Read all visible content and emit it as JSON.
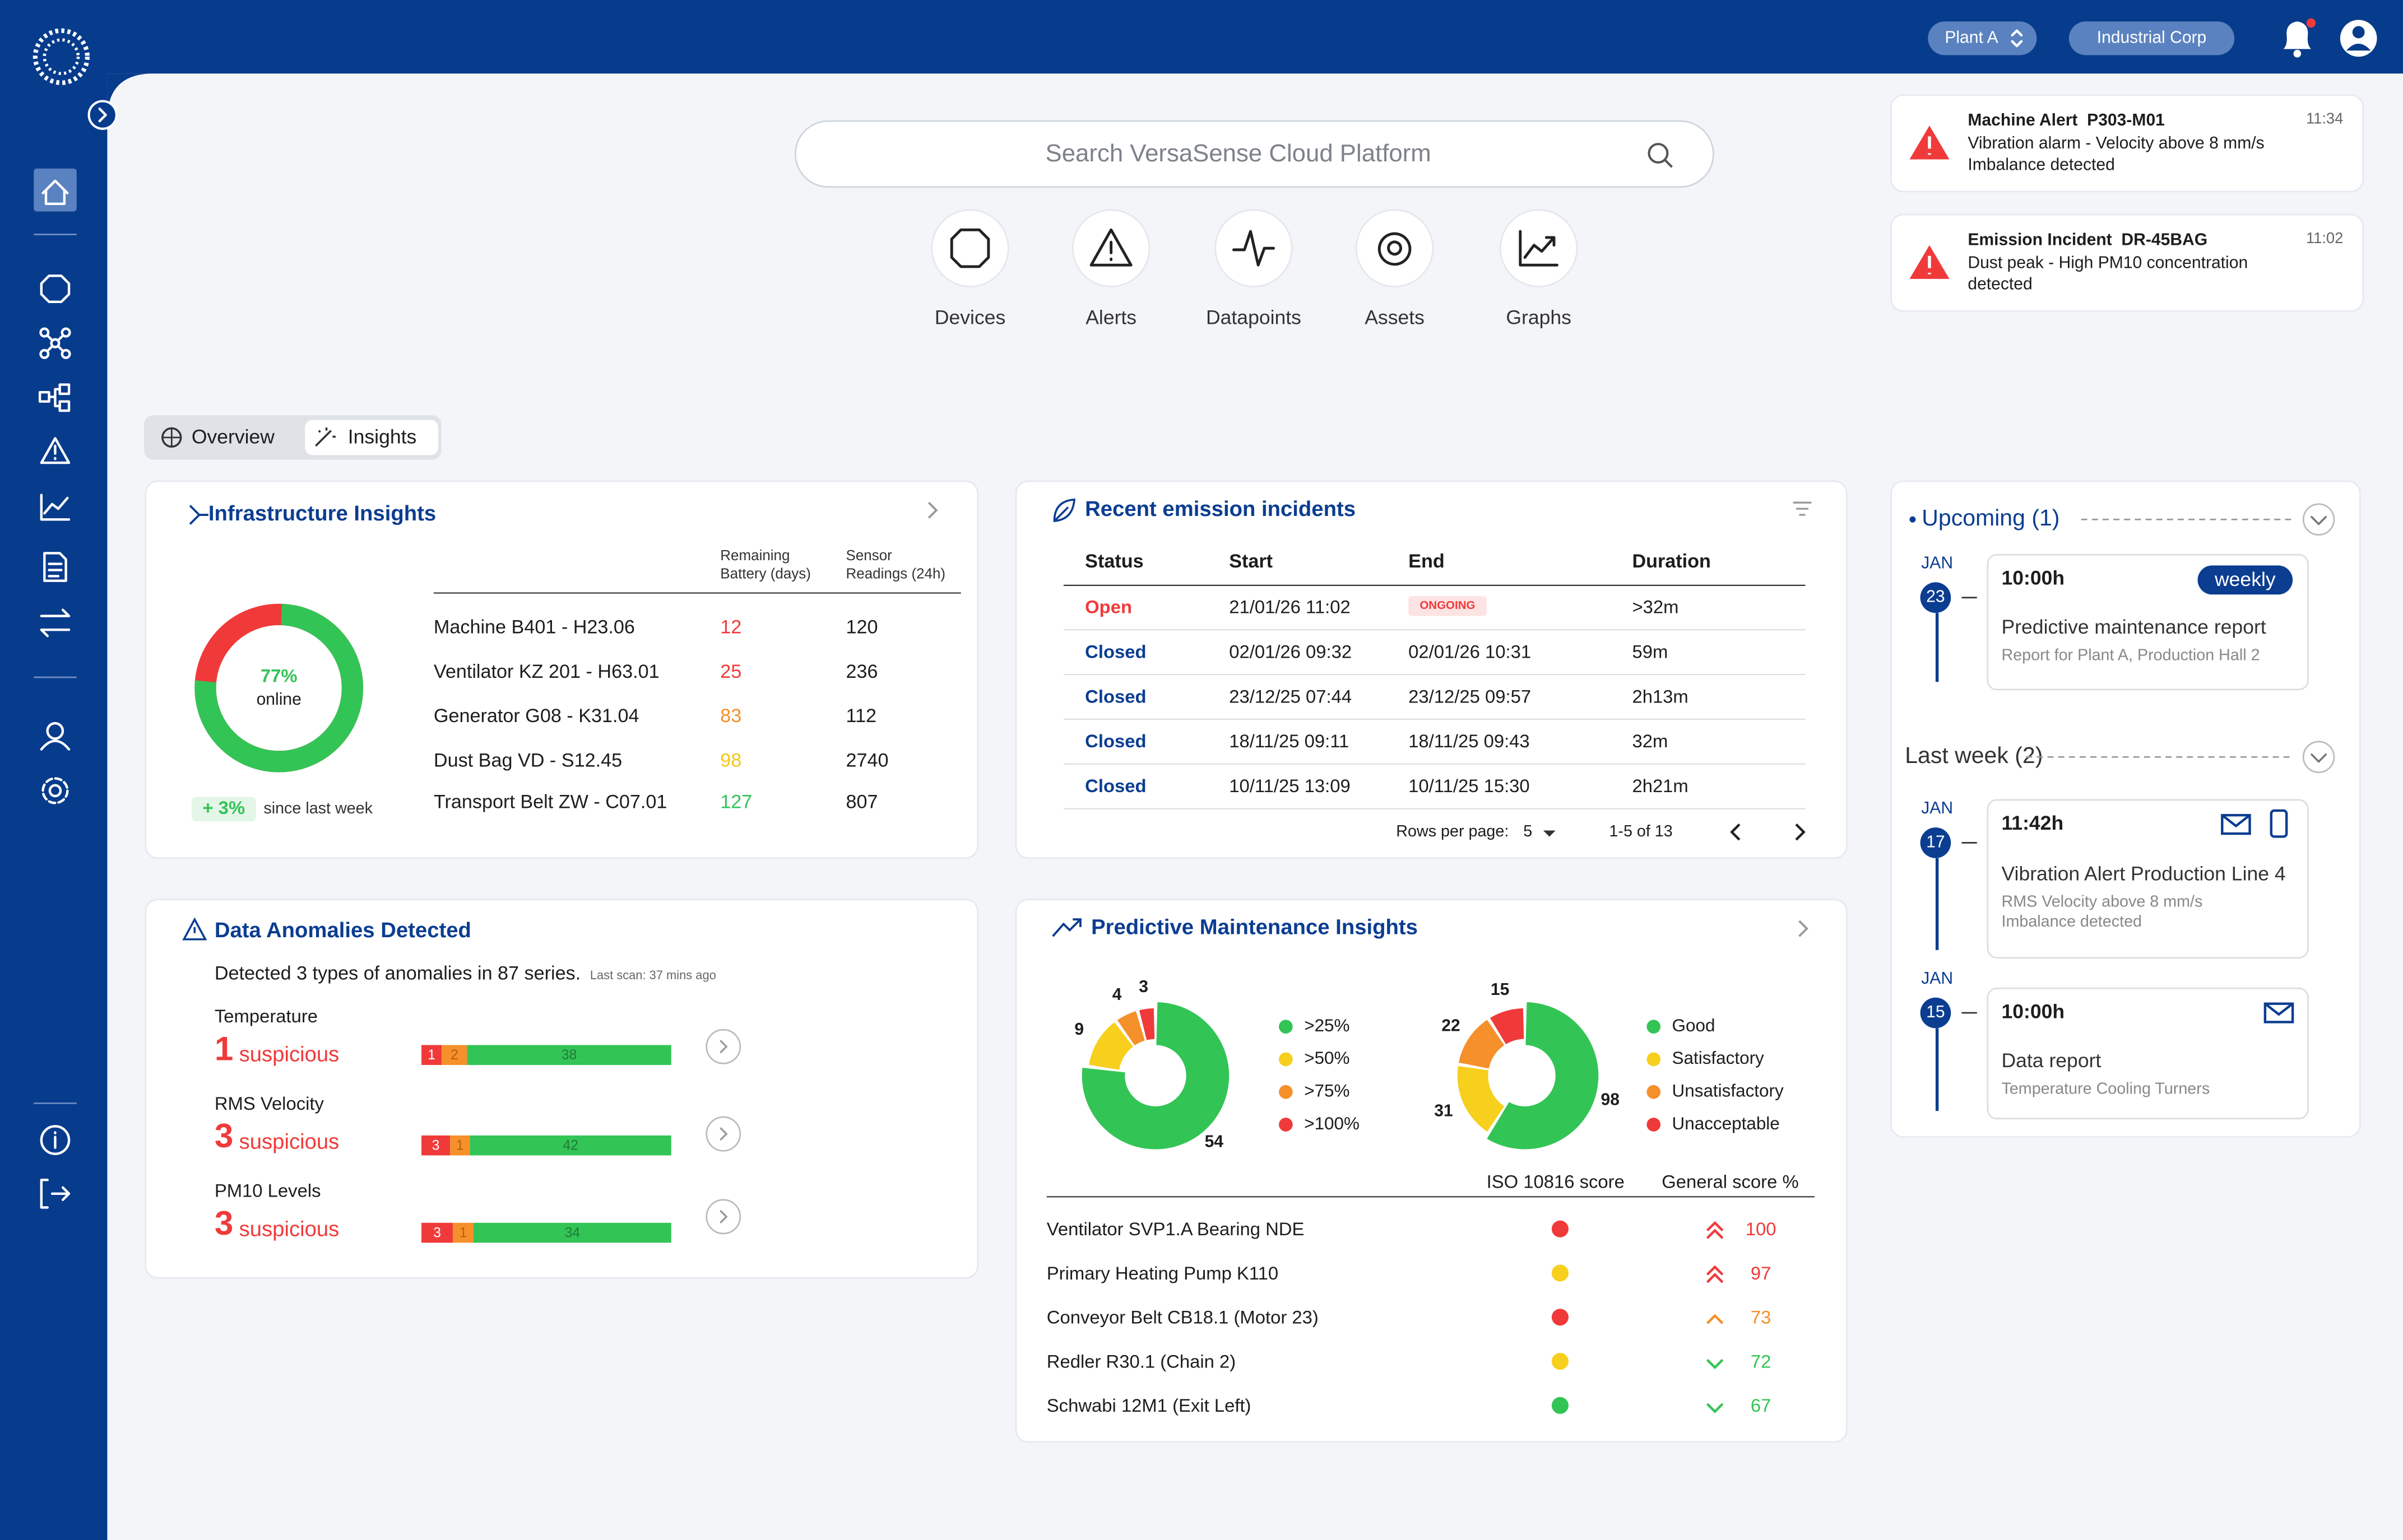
{
  "top_bar": {
    "plant": "Plant A",
    "company": "Industrial Corp"
  },
  "notifications": [
    {
      "title": "Machine Alert  P303-M01",
      "time": "11:34",
      "lines": [
        "Vibration alarm - Velocity above 8 mm/s",
        "Imbalance detected"
      ]
    },
    {
      "title": "Emission Incident  DR-45BAG",
      "time": "11:02",
      "lines": [
        "Dust peak - High PM10 concentration",
        "detected"
      ]
    }
  ],
  "search": {
    "placeholder": "Search VersaSense Cloud Platform"
  },
  "quick_links": [
    "Devices",
    "Alerts",
    "Datapoints",
    "Assets",
    "Graphs"
  ],
  "tabs": [
    "Overview",
    "Insights"
  ],
  "infrastructure": {
    "title": "Infrastructure Insights",
    "online": {
      "value": 77,
      "label": "77%"
    },
    "online_label": "online",
    "change": "+ 3%",
    "change_label": "since last week",
    "columns": [
      [
        "Remaining",
        "Battery (days)"
      ],
      [
        "Sensor",
        "Readings (24h)"
      ]
    ],
    "rows": [
      {
        "name": "Machine B401 - H23.06",
        "battery": 12,
        "battery_color": "#f03a3a",
        "readings": 120
      },
      {
        "name": "Ventilator KZ 201 - H63.01",
        "battery": 25,
        "battery_color": "#f03a3a",
        "readings": 236
      },
      {
        "name": "Generator G08 - K31.04",
        "battery": 83,
        "battery_color": "#f5902a",
        "readings": 112
      },
      {
        "name": "Dust Bag VD - S12.45",
        "battery": 98,
        "battery_color": "#f2c81a",
        "readings": 2740
      },
      {
        "name": "Transport Belt ZW - C07.01",
        "battery": 127,
        "battery_color": "#33c456",
        "readings": 807
      }
    ]
  },
  "emissions": {
    "title": "Recent emission incidents",
    "columns": [
      "Status",
      "Start",
      "End",
      "Duration"
    ],
    "rows": [
      {
        "status": "Open",
        "status_color": "#f03a3a",
        "start": "21/01/26 11:02",
        "end": "ONGOING",
        "end_color": "#f03a3a",
        "duration": ">32m"
      },
      {
        "status": "Closed",
        "status_color": "#0b3d91",
        "start": "02/01/26 09:32",
        "end": "02/01/26 10:31",
        "duration": "59m"
      },
      {
        "status": "Closed",
        "status_color": "#0b3d91",
        "start": "23/12/25 07:44",
        "end": "23/12/25 09:57",
        "duration": "2h13m"
      },
      {
        "status": "Closed",
        "status_color": "#0b3d91",
        "start": "18/11/25 09:11",
        "end": "18/11/25 09:43",
        "duration": "32m"
      },
      {
        "status": "Closed",
        "status_color": "#0b3d91",
        "start": "10/11/25 13:09",
        "end": "10/11/25 15:30",
        "duration": "2h21m"
      }
    ],
    "rows_per_page_label": "Rows per page:",
    "rows_per_page": 5,
    "range": "1-5 of 13"
  },
  "anomalies": {
    "title": "Data Anomalies Detected",
    "summary": "Detected 3 types of anomalies in 87 series.",
    "last_scan": "Last scan: 37 mins ago",
    "suspicious_label": "suspicious",
    "items": [
      {
        "name": "Temperature",
        "count": 1,
        "segments": [
          1,
          2,
          38
        ]
      },
      {
        "name": "RMS Velocity",
        "count": 3,
        "segments": [
          3,
          1,
          42
        ]
      },
      {
        "name": "PM10 Levels",
        "count": 3,
        "segments": [
          3,
          1,
          34
        ]
      }
    ],
    "segment_colors": [
      "#f03a3a",
      "#f5902a",
      "#33c456"
    ]
  },
  "predictive": {
    "title": "Predictive Maintenance Insights",
    "charts": [
      {
        "type": "pie",
        "series": [
          {
            "name": ">25%",
            "color": "#33c456",
            "value": 54
          },
          {
            "name": ">50%",
            "color": "#f7cf1d",
            "value": 9
          },
          {
            "name": ">75%",
            "color": "#f5902a",
            "value": 4
          },
          {
            "name": ">100%",
            "color": "#f03a3a",
            "value": 3
          }
        ]
      },
      {
        "type": "pie",
        "series": [
          {
            "name": "Good",
            "color": "#33c456",
            "value": 98
          },
          {
            "name": "Satisfactory",
            "color": "#f7cf1d",
            "value": 31
          },
          {
            "name": "Unsatisfactory",
            "color": "#f5902a",
            "value": 22
          },
          {
            "name": "Unacceptable",
            "color": "#f03a3a",
            "value": 15
          }
        ]
      }
    ],
    "columns": [
      "ISO 10816 score",
      "General score %"
    ],
    "rows": [
      {
        "name": "Ventilator SVP1.A Bearing NDE",
        "iso_color": "#f03a3a",
        "trend": "double-up",
        "score_color": "#f03a3a",
        "score": 100
      },
      {
        "name": "Primary Heating Pump K110",
        "iso_color": "#f7cf1d",
        "trend": "double-up",
        "score_color": "#f03a3a",
        "score": 97
      },
      {
        "name": "Conveyor Belt CB18.1 (Motor 23)",
        "iso_color": "#f03a3a",
        "trend": "up",
        "score_color": "#f5902a",
        "score": 73
      },
      {
        "name": "Redler R30.1 (Chain 2)",
        "iso_color": "#f7cf1d",
        "trend": "down",
        "score_color": "#33c456",
        "score": 72
      },
      {
        "name": "Schwabi 12M1 (Exit Left)",
        "iso_color": "#33c456",
        "trend": "down",
        "score_color": "#33c456",
        "score": 67
      }
    ]
  },
  "schedule": {
    "upcoming": {
      "title": "Upcoming (1)",
      "items": [
        {
          "month": "JAN",
          "day": 23,
          "time": "10:00h",
          "badge": "weekly",
          "title": "Predictive maintenance report",
          "subtitle": [
            "Report for Plant A, Production Hall 2"
          ],
          "channels": []
        }
      ]
    },
    "last_week": {
      "title": "Last week (2)",
      "items": [
        {
          "month": "JAN",
          "day": 17,
          "time": "11:42h",
          "title": "Vibration Alert Production Line 4",
          "subtitle": [
            "RMS Velocity above 8 mm/s",
            "Imbalance detected"
          ],
          "channels": [
            "email",
            "phone"
          ]
        },
        {
          "month": "JAN",
          "day": 15,
          "time": "10:00h",
          "title": "Data report",
          "subtitle": [
            "Temperature Cooling Turners"
          ],
          "channels": [
            "email"
          ]
        }
      ]
    }
  }
}
